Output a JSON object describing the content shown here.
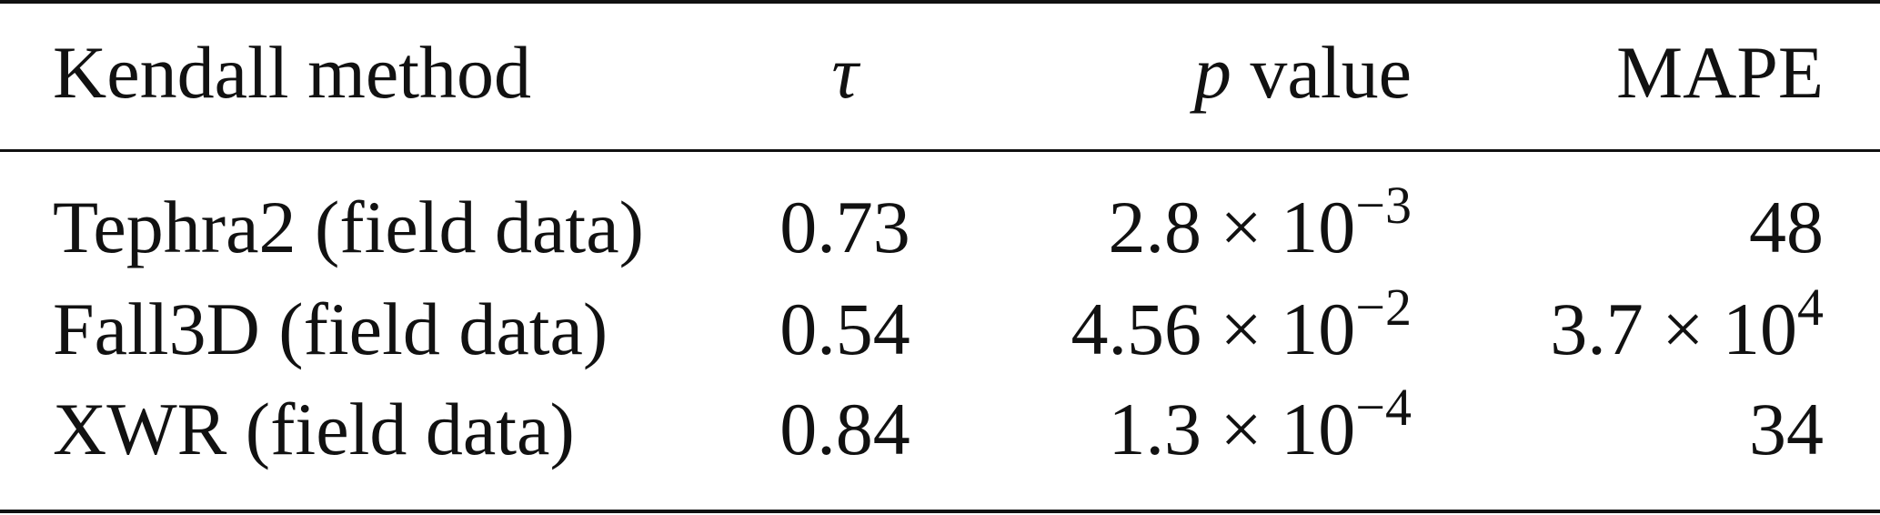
{
  "table": {
    "header": [
      "Kendall method",
      "τ",
      {
        "symbol": "p",
        "text": "value"
      },
      "MAPE"
    ],
    "rows": [
      [
        "Tephra2 (field data)",
        "0.73",
        {
          "base": "2.8 × 10",
          "exponent": "−3"
        },
        "48"
      ],
      [
        "Fall3D (field data)",
        "0.54",
        {
          "base": "4.56 × 10",
          "exponent": "−2"
        },
        {
          "base": "3.7 × 10",
          "exponent": "4"
        }
      ],
      [
        "XWR (field data)",
        "0.84",
        {
          "base": "1.3 × 10",
          "exponent": "−4"
        },
        "34"
      ]
    ]
  }
}
